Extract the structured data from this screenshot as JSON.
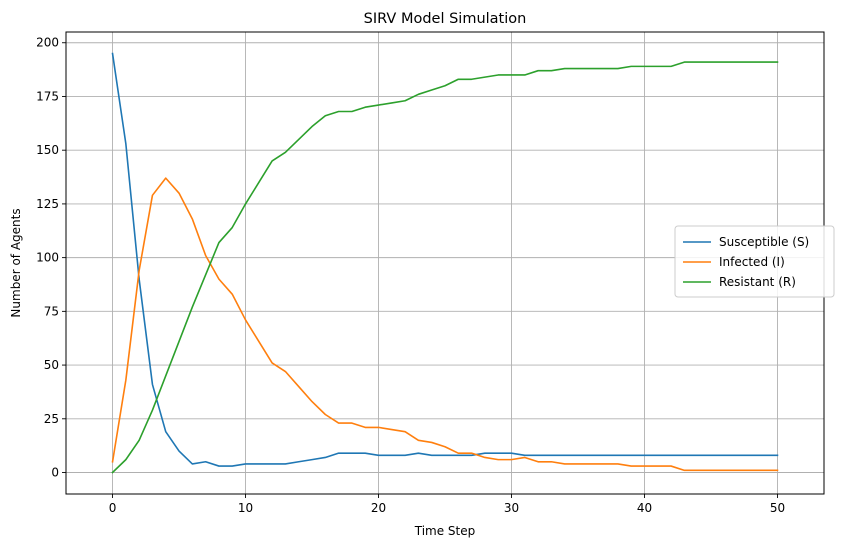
{
  "chart_data": {
    "type": "line",
    "title": "SIRV Model Simulation",
    "xlabel": "Time Step",
    "ylabel": "Number of Agents",
    "xlim": [
      -3.5,
      53.5
    ],
    "ylim": [
      -10,
      205
    ],
    "x_ticks": [
      0,
      10,
      20,
      30,
      40,
      50
    ],
    "y_ticks": [
      0,
      25,
      50,
      75,
      100,
      125,
      150,
      175,
      200
    ],
    "grid": true,
    "legend_position": "center-right",
    "x": [
      0,
      1,
      2,
      3,
      4,
      5,
      6,
      7,
      8,
      9,
      10,
      11,
      12,
      13,
      14,
      15,
      16,
      17,
      18,
      19,
      20,
      21,
      22,
      23,
      24,
      25,
      26,
      27,
      28,
      29,
      30,
      31,
      32,
      33,
      34,
      35,
      36,
      37,
      38,
      39,
      40,
      41,
      42,
      43,
      44,
      45,
      46,
      47,
      48,
      49,
      50
    ],
    "series": [
      {
        "name": "Susceptible (S)",
        "color": "#1f77b4",
        "values": [
          195,
          153,
          90,
          41,
          19,
          10,
          4,
          5,
          3,
          3,
          4,
          4,
          4,
          4,
          5,
          6,
          7,
          9,
          9,
          9,
          8,
          8,
          8,
          9,
          8,
          8,
          8,
          8,
          9,
          9,
          9,
          8,
          8,
          8,
          8,
          8,
          8,
          8,
          8,
          8,
          8,
          8,
          8,
          8,
          8,
          8,
          8,
          8,
          8,
          8,
          8
        ]
      },
      {
        "name": "Infected (I)",
        "color": "#ff7f0e",
        "values": [
          5,
          43,
          94,
          129,
          137,
          130,
          118,
          101,
          90,
          83,
          71,
          61,
          51,
          47,
          40,
          33,
          27,
          23,
          23,
          21,
          21,
          20,
          19,
          15,
          14,
          12,
          9,
          9,
          7,
          6,
          6,
          7,
          5,
          5,
          4,
          4,
          4,
          4,
          4,
          3,
          3,
          3,
          3,
          1,
          1,
          1,
          1,
          1,
          1,
          1,
          1
        ]
      },
      {
        "name": "Resistant (R)",
        "color": "#2ca02c",
        "values": [
          0,
          6,
          15,
          29,
          45,
          61,
          77,
          92,
          107,
          114,
          125,
          135,
          145,
          149,
          155,
          161,
          166,
          168,
          168,
          170,
          171,
          172,
          173,
          176,
          178,
          180,
          183,
          183,
          184,
          185,
          185,
          185,
          187,
          187,
          188,
          188,
          188,
          188,
          188,
          189,
          189,
          189,
          189,
          191,
          191,
          191,
          191,
          191,
          191,
          191,
          191
        ]
      }
    ]
  }
}
